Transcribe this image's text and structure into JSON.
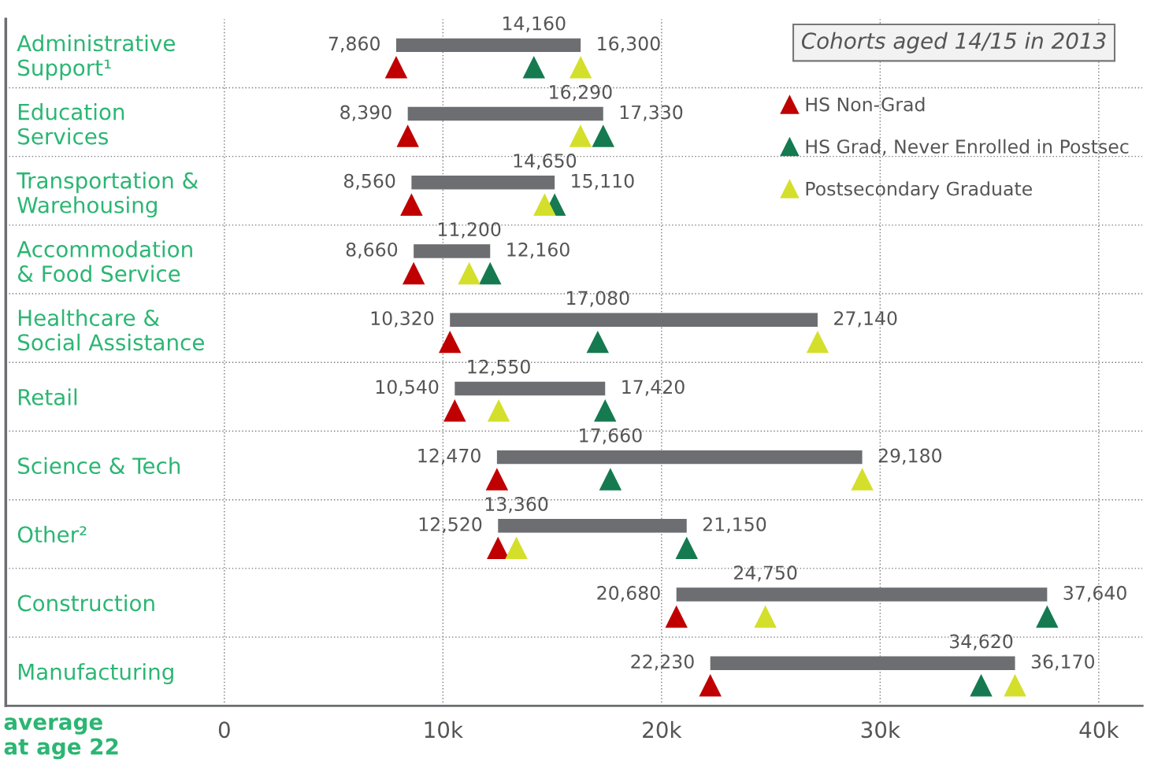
{
  "chart_data": {
    "type": "bar",
    "orientation": "horizontal",
    "legend_title": "Cohorts aged 14/15 in 2013",
    "categories": [
      "Administrative\nSupport¹",
      "Education\nServices",
      "Transportation &\nWarehousing",
      "Accommodation\n& Food Service",
      "Healthcare &\nSocial Assistance",
      "Retail",
      "Science & Tech",
      "Other²",
      "Construction",
      "Manufacturing"
    ],
    "series": [
      {
        "color": "#6d6e71",
        "base": [
          7860,
          8390,
          8560,
          8660,
          10320,
          10540,
          12470,
          12520,
          20680,
          22230
        ],
        "values": [
          8440,
          8940,
          6550,
          3500,
          16820,
          6880,
          16710,
          8630,
          16960,
          13940
        ]
      },
      {
        "type": "scatter",
        "name": "HS Non-Grad",
        "color": "#c00000",
        "values": [
          7860,
          8390,
          8560,
          8660,
          10320,
          10540,
          12470,
          12520,
          20680,
          22230
        ],
        "value_labels": [
          "7,860",
          "8,390",
          "8,560",
          "8,660",
          "10,320",
          "10,540",
          "12,470",
          "12,520",
          "20,680",
          "22,230"
        ]
      },
      {
        "type": "scatter",
        "name": "HS Grad, Never Enrolled in Postsec",
        "color": "#157a50",
        "values": [
          14160,
          17330,
          15110,
          12160,
          17080,
          17420,
          17660,
          21150,
          37640,
          34620
        ],
        "value_labels": [
          "14,160",
          "17,330",
          "15,110",
          "12,160",
          "17,080",
          "17,420",
          "17,660",
          "21,150",
          "37,640",
          "34,620"
        ]
      },
      {
        "type": "scatter",
        "name": "Postsecondary Graduate",
        "color": "#d4df2c",
        "values": [
          16300,
          16290,
          14650,
          11200,
          27140,
          12550,
          29180,
          13360,
          24750,
          36170
        ],
        "value_labels": [
          "16,300",
          "16,290",
          "14,650",
          "11,200",
          "27,140",
          "12,550",
          "29,180",
          "13,360",
          "24,750",
          "36,170"
        ]
      }
    ],
    "xlim": [
      -10000,
      42000
    ],
    "xticks": [
      0,
      {
        "value": 10000,
        "label": "10k"
      },
      {
        "value": 20000,
        "label": "20k"
      },
      {
        "value": 30000,
        "label": "30k"
      },
      {
        "value": 40000,
        "label": "40k"
      }
    ],
    "annotations": [
      "average\nat age 22"
    ],
    "marker": "triangle",
    "grid": "x",
    "legend": "top right"
  }
}
